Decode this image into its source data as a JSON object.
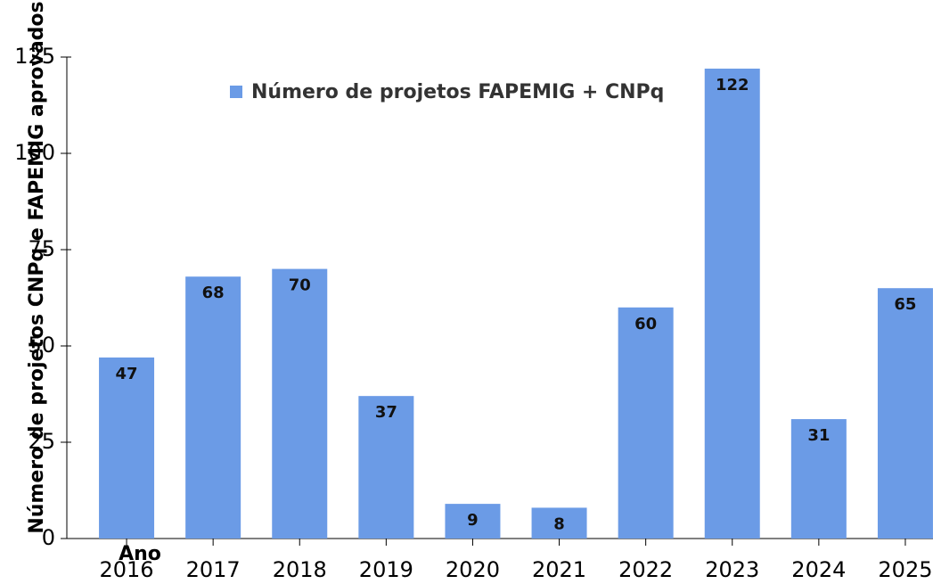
{
  "chart_data": {
    "type": "bar",
    "xlabel": "Ano",
    "ylabel": "Número de projetos CNPq e FAPEMIG aprovados",
    "categories": [
      "2016",
      "2017",
      "2018",
      "2019",
      "2020",
      "2021",
      "2022",
      "2023",
      "2024",
      "2025"
    ],
    "series": [
      {
        "name": "Número de projetos FAPEMIG + CNPq",
        "color": "#6b9be6",
        "values": [
          47,
          68,
          70,
          37,
          9,
          8,
          60,
          122,
          31,
          65
        ]
      }
    ],
    "ylim": [
      0,
      125
    ],
    "yticks": [
      0,
      25,
      50,
      75,
      100,
      125
    ],
    "legend": "top"
  }
}
